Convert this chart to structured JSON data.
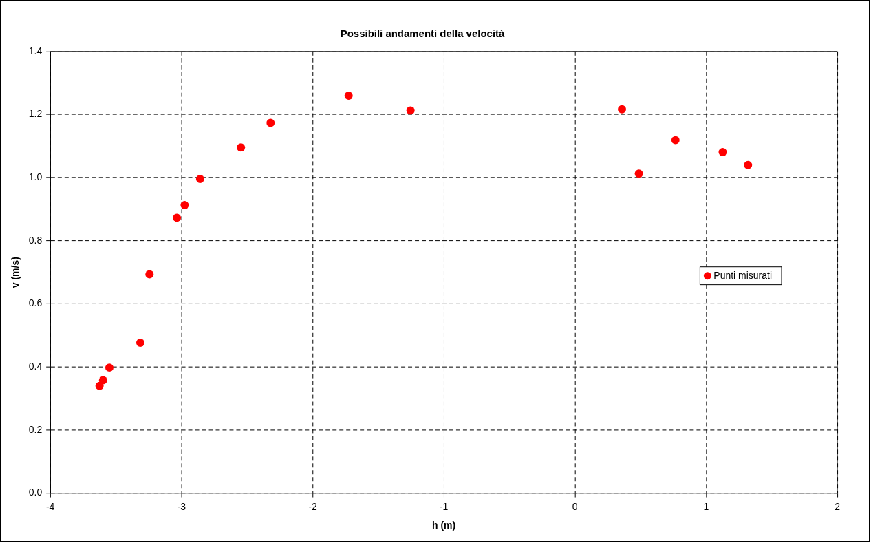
{
  "chart_data": {
    "type": "scatter",
    "title": "Possibili andamenti della velocità",
    "xlabel": "h (m)",
    "ylabel": "v (m/s)",
    "series": [
      {
        "name": "Punti misurati",
        "color": "#ff0000",
        "x": [
          -3.625,
          -3.598,
          -3.55,
          -3.314,
          -3.244,
          -3.035,
          -2.976,
          -2.858,
          -2.547,
          -2.321,
          -1.726,
          -1.254,
          0.358,
          0.487,
          0.766,
          1.126,
          1.319
        ],
        "values": [
          0.34,
          0.358,
          0.398,
          0.477,
          0.694,
          0.873,
          0.913,
          0.996,
          1.096,
          1.174,
          1.26,
          1.213,
          1.217,
          1.013,
          1.119,
          1.081,
          1.04
        ]
      }
    ],
    "xlim": [
      -4,
      2
    ],
    "xticks": [
      -4,
      -3,
      -2,
      -1,
      0,
      1,
      2
    ],
    "ylim": [
      0,
      1.4
    ],
    "yticks": [
      {
        "value": 0,
        "label": "0.0"
      },
      {
        "value": 0.2,
        "label": "0.2"
      },
      {
        "value": 0.4,
        "label": "0.4"
      },
      {
        "value": 0.6,
        "label": "0.6"
      },
      {
        "value": 0.8,
        "label": "0.8"
      },
      {
        "value": 1,
        "label": "1.0"
      },
      {
        "value": 1.2,
        "label": "1.2"
      },
      {
        "value": 1.4,
        "label": "1.4"
      }
    ],
    "grid": true,
    "legend": "right",
    "marker": "circle"
  }
}
